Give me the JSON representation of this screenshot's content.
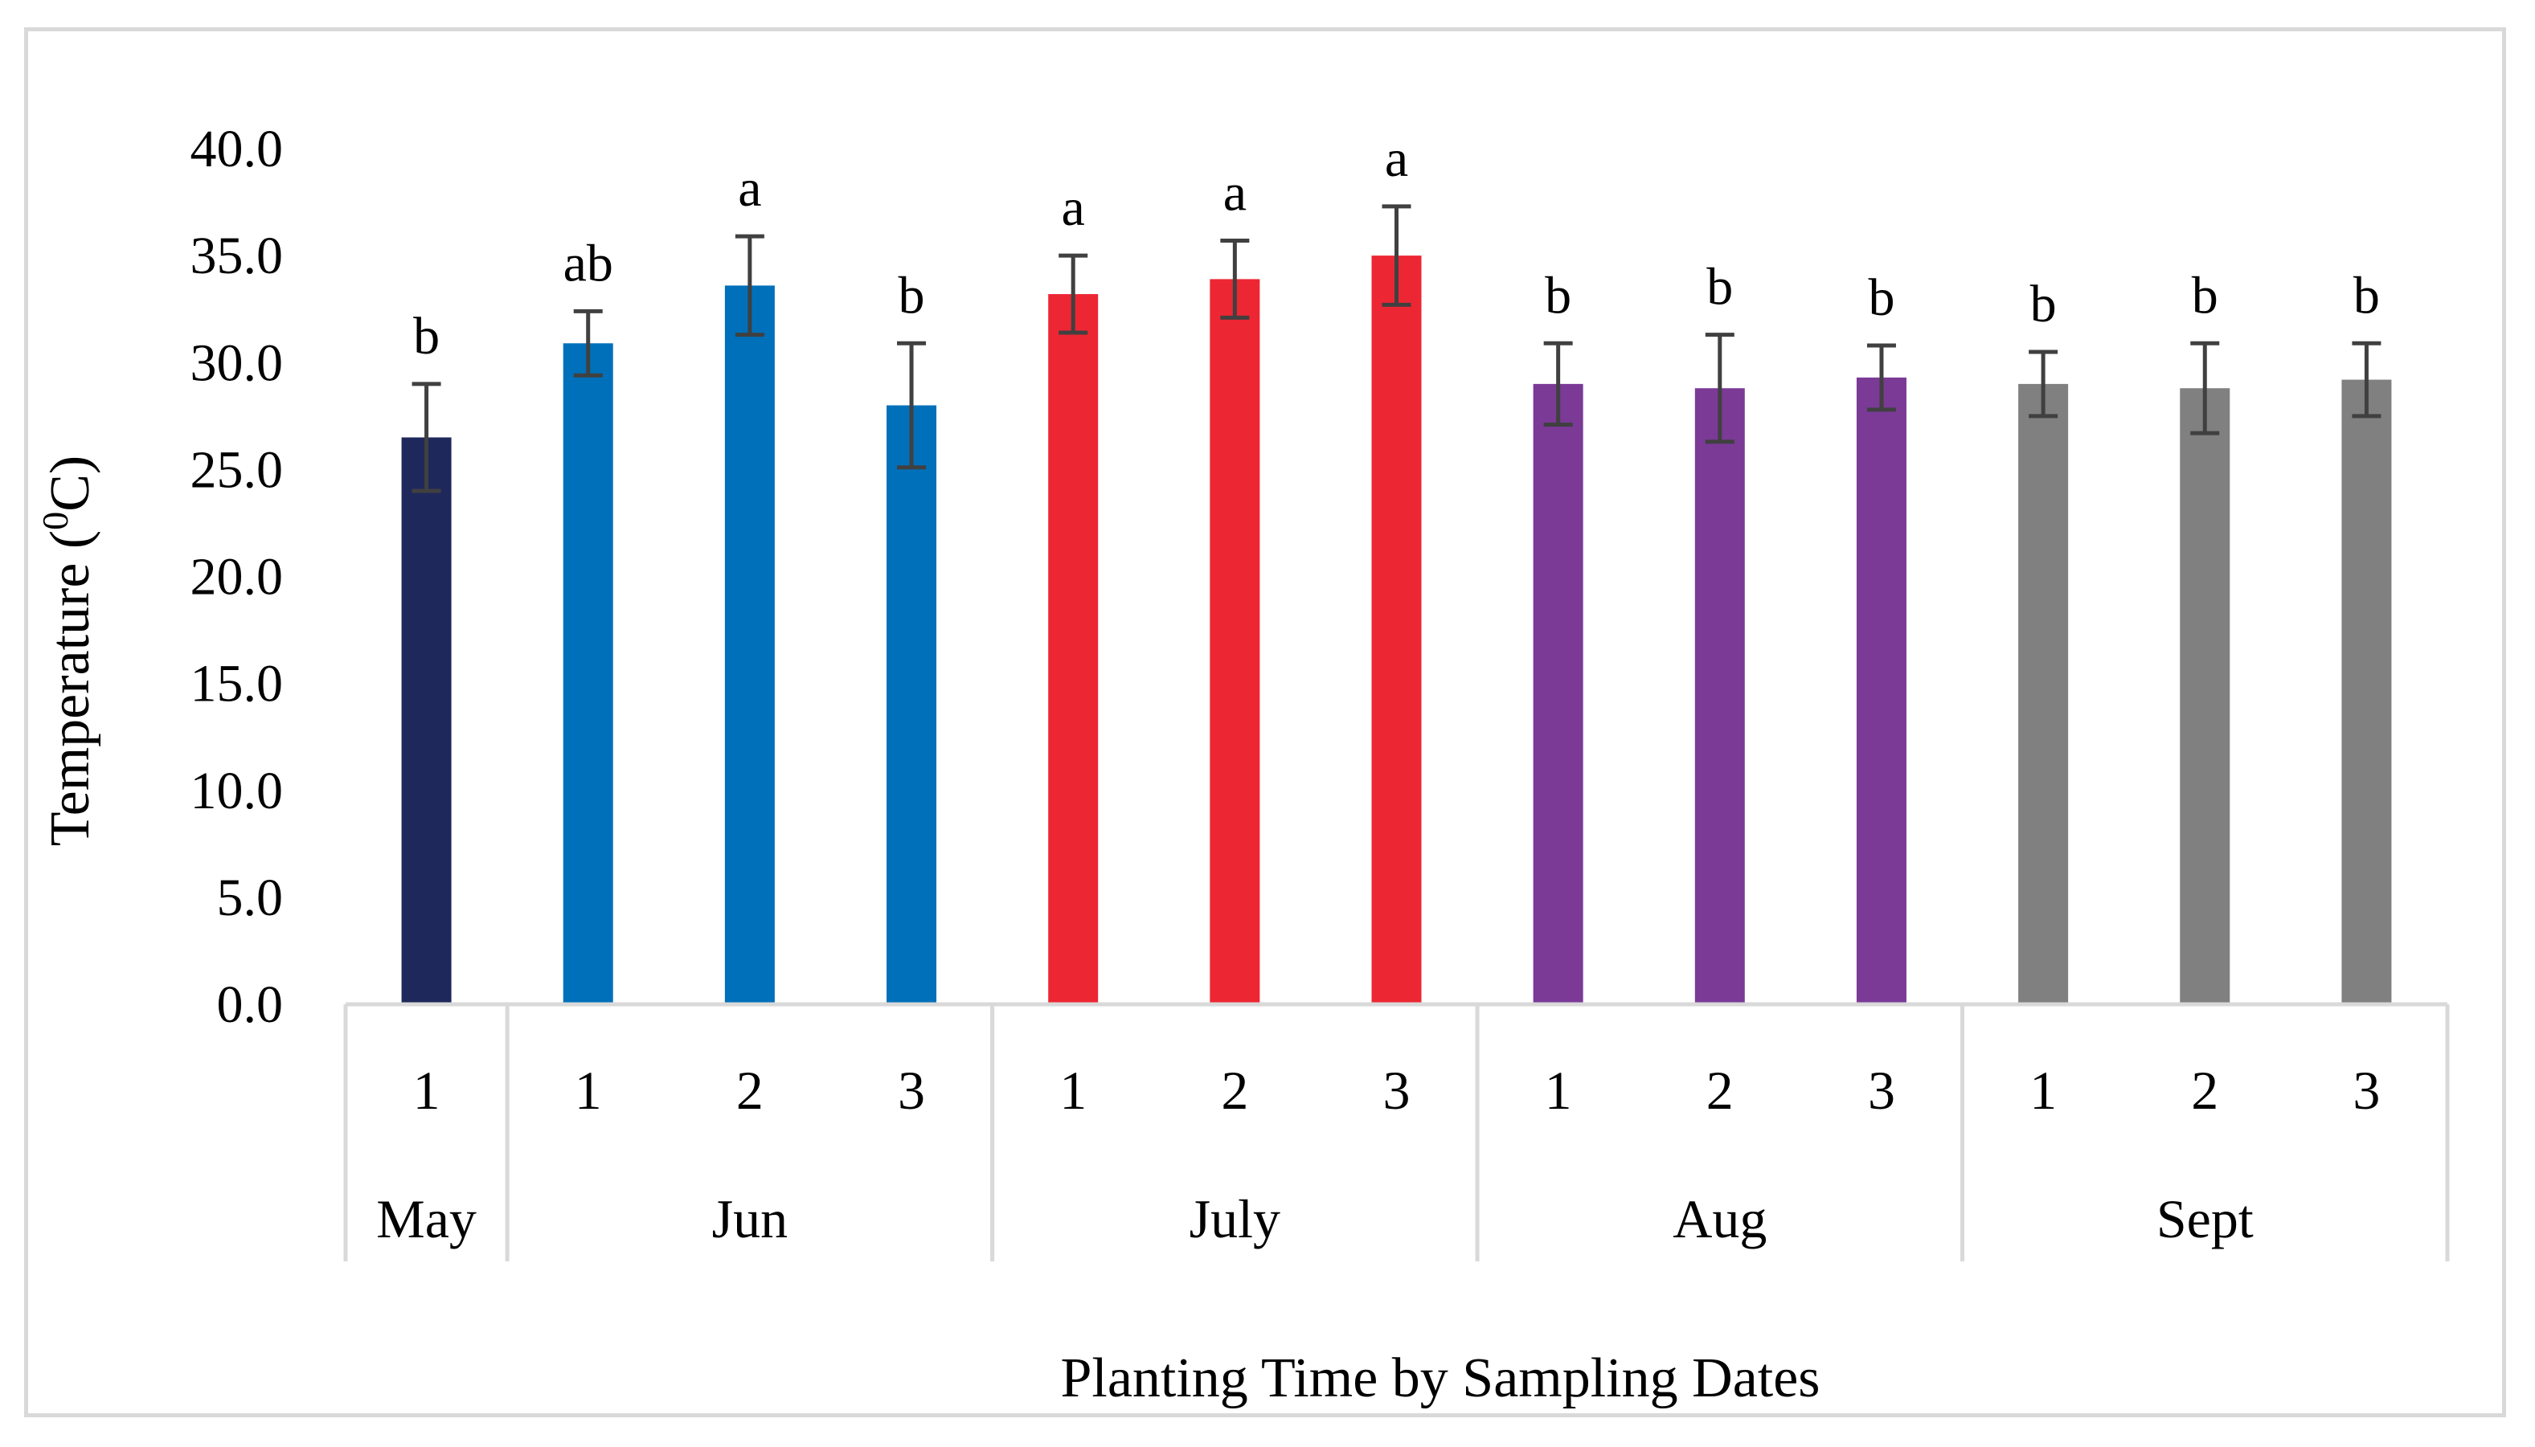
{
  "chart_data": {
    "type": "bar",
    "title": "",
    "ylabel": "Temperature (0C)",
    "ylabel_main": "Temperature (",
    "ylabel_sup": "0",
    "ylabel_tail": "C)",
    "xlabel": "Planting Time by Sampling Dates",
    "ylim": [
      0,
      40
    ],
    "yticks": [
      "0.0",
      "5.0",
      "10.0",
      "15.0",
      "20.0",
      "25.0",
      "30.0",
      "35.0",
      "40.0"
    ],
    "grid": false,
    "groups": [
      {
        "name": "May",
        "color": "#1f285a",
        "bars": [
          {
            "date": "1",
            "value": 26.5,
            "error": 2.5,
            "label": "b"
          }
        ]
      },
      {
        "name": "Jun",
        "color": "#0070ba",
        "bars": [
          {
            "date": "1",
            "value": 30.9,
            "error": 1.5,
            "label": "ab"
          },
          {
            "date": "2",
            "value": 33.6,
            "error": 2.3,
            "label": "a"
          },
          {
            "date": "3",
            "value": 28.0,
            "error": 2.9,
            "label": "b"
          }
        ]
      },
      {
        "name": "July",
        "color": "#ed2633",
        "bars": [
          {
            "date": "1",
            "value": 33.2,
            "error": 1.8,
            "label": "a"
          },
          {
            "date": "2",
            "value": 33.9,
            "error": 1.8,
            "label": "a"
          },
          {
            "date": "3",
            "value": 35.0,
            "error": 2.3,
            "label": "a"
          }
        ]
      },
      {
        "name": "Aug",
        "color": "#7a3a96",
        "bars": [
          {
            "date": "1",
            "value": 29.0,
            "error": 1.9,
            "label": "b"
          },
          {
            "date": "2",
            "value": 28.8,
            "error": 2.5,
            "label": "b"
          },
          {
            "date": "3",
            "value": 29.3,
            "error": 1.5,
            "label": "b"
          }
        ]
      },
      {
        "name": "Sept",
        "color": "#808080",
        "bars": [
          {
            "date": "1",
            "value": 29.0,
            "error": 1.5,
            "label": "b"
          },
          {
            "date": "2",
            "value": 28.8,
            "error": 2.1,
            "label": "b"
          },
          {
            "date": "3",
            "value": 29.2,
            "error": 1.7,
            "label": "b"
          }
        ]
      }
    ],
    "error_bar_color": "#404040",
    "axis_line_color": "#d9d9d9"
  }
}
